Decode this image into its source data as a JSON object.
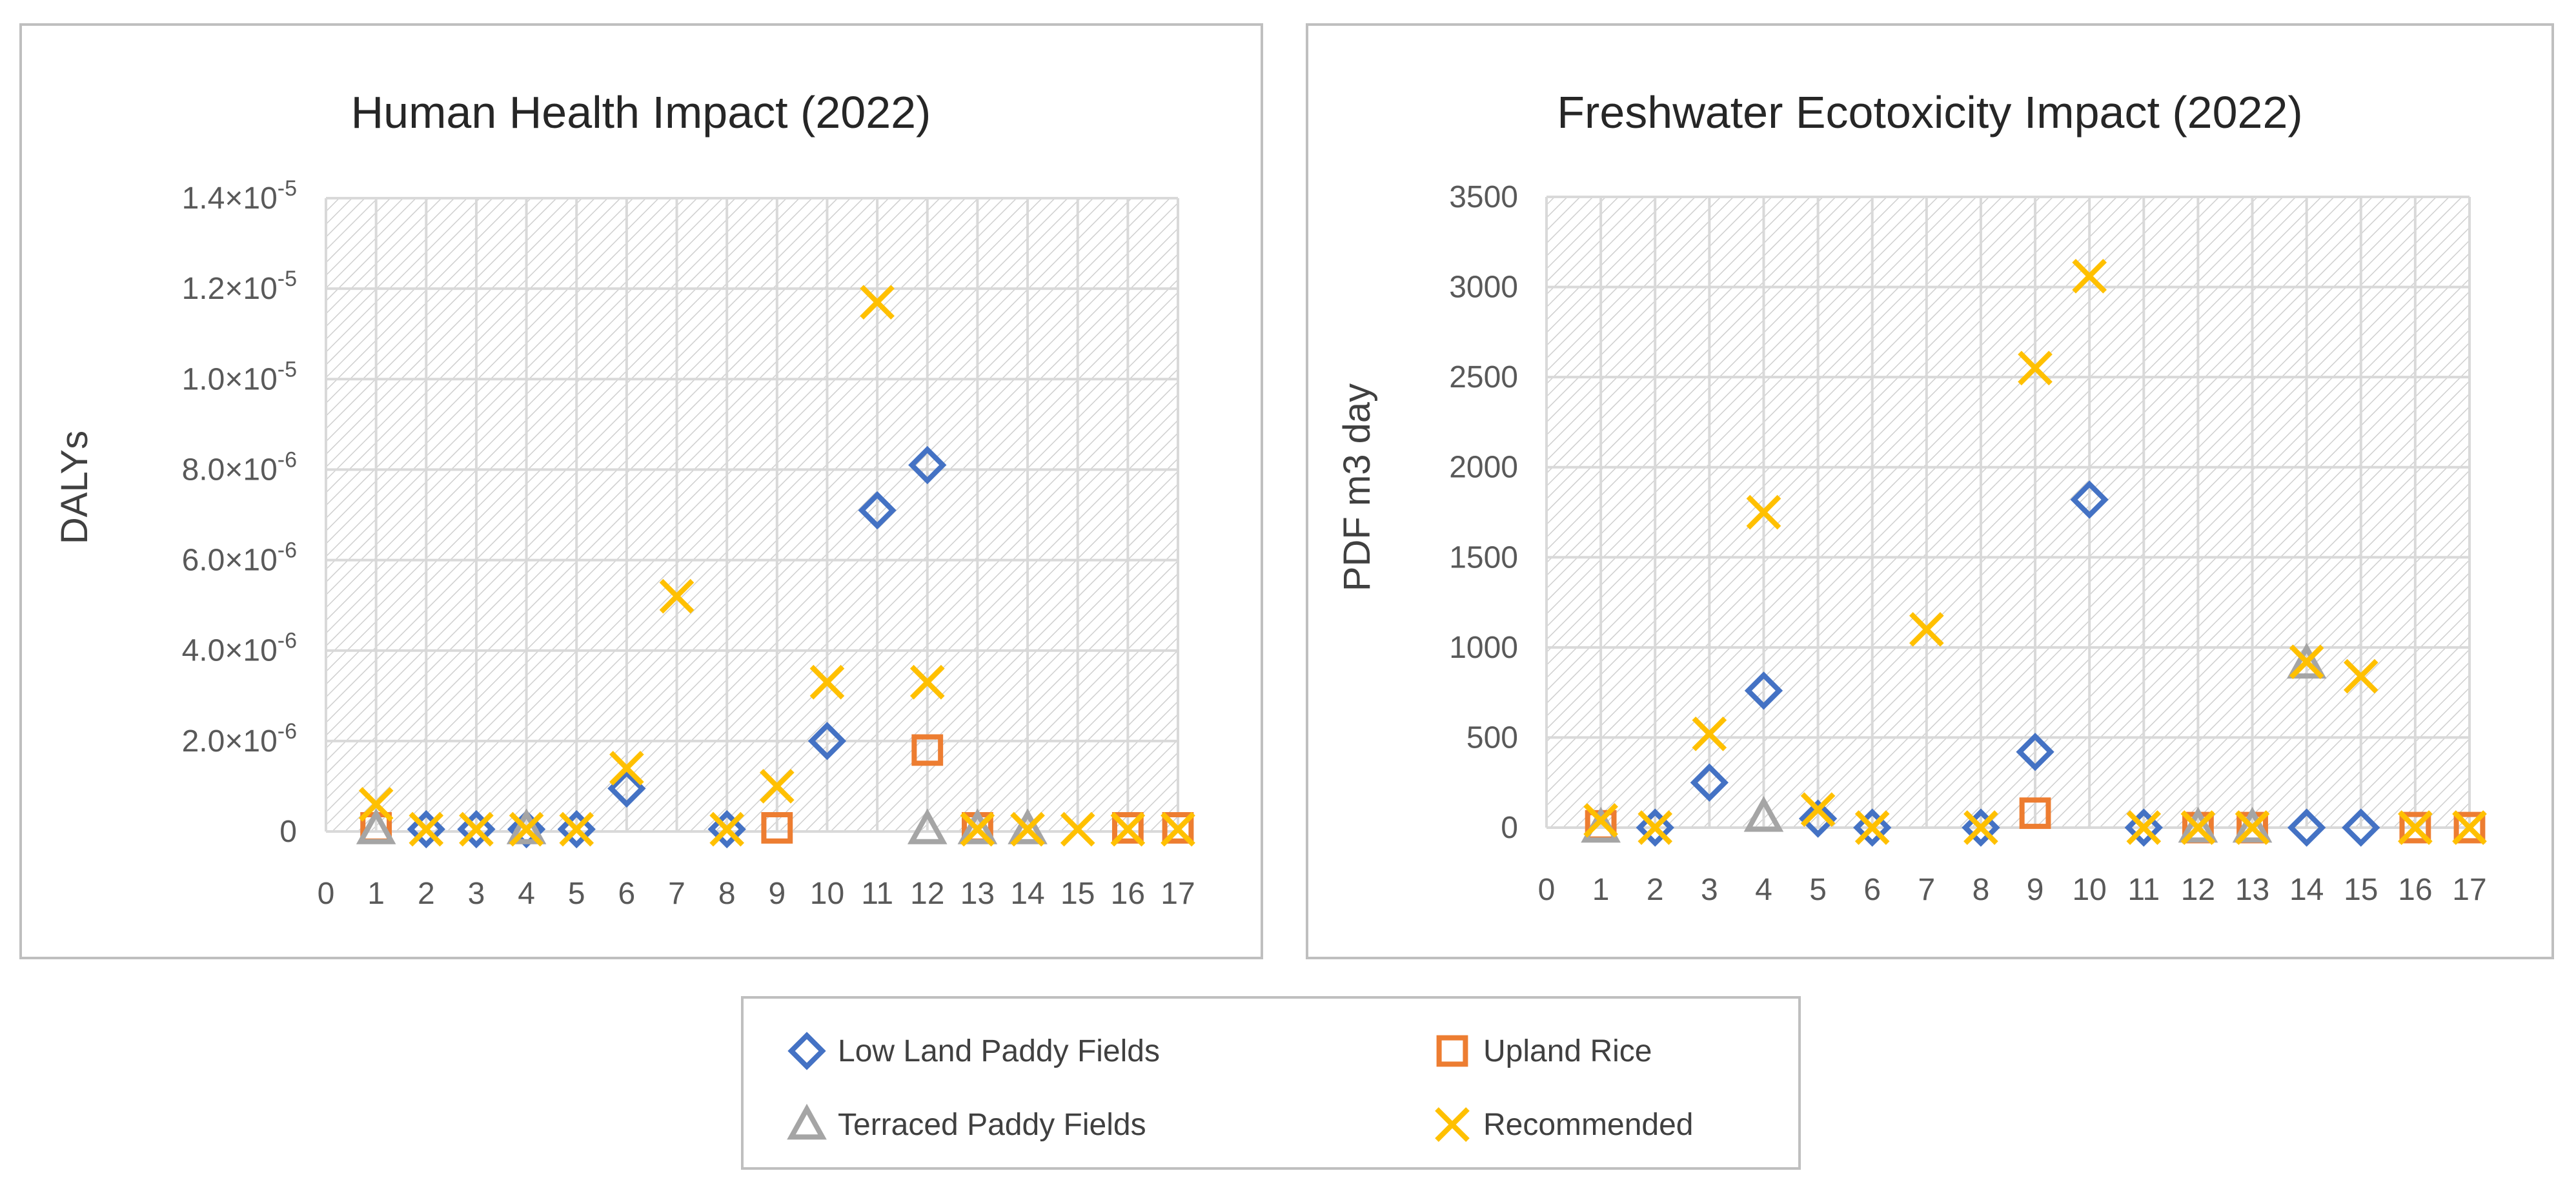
{
  "colors": {
    "low_land": "#4472C4",
    "upland": "#ED7D31",
    "terraced": "#A5A5A5",
    "recommended": "#FFC000",
    "grid": "#D9D9D9",
    "frame": "#BFBFBF"
  },
  "legend": {
    "items": [
      {
        "key": "low_land",
        "label": "Low Land Paddy Fields",
        "marker": "diamond"
      },
      {
        "key": "upland",
        "label": "Upland Rice",
        "marker": "square"
      },
      {
        "key": "terraced",
        "label": "Terraced Paddy Fields",
        "marker": "triangle"
      },
      {
        "key": "recommended",
        "label": "Recommended",
        "marker": "x"
      }
    ]
  },
  "chart_data": [
    {
      "type": "scatter",
      "title": "Human Health Impact (2022)",
      "xlabel": "",
      "ylabel": "DALYs",
      "xlim": [
        0,
        17
      ],
      "ylim": [
        0,
        1.4e-05
      ],
      "x_ticks": [
        "0",
        "1",
        "2",
        "3",
        "4",
        "5",
        "6",
        "7",
        "8",
        "9",
        "10",
        "11",
        "12",
        "13",
        "14",
        "15",
        "16",
        "17"
      ],
      "y_ticks": [
        {
          "value": 0,
          "mantissa": "0",
          "exp": ""
        },
        {
          "value": 2e-06,
          "mantissa": "2.0×10",
          "exp": "-6"
        },
        {
          "value": 4e-06,
          "mantissa": "4.0×10",
          "exp": "-6"
        },
        {
          "value": 6e-06,
          "mantissa": "6.0×10",
          "exp": "-6"
        },
        {
          "value": 8e-06,
          "mantissa": "8.0×10",
          "exp": "-6"
        },
        {
          "value": 1e-05,
          "mantissa": "1.0×10",
          "exp": "-5"
        },
        {
          "value": 1.2e-05,
          "mantissa": "1.2×10",
          "exp": "-5"
        },
        {
          "value": 1.4e-05,
          "mantissa": "1.4×10",
          "exp": "-5"
        }
      ],
      "grid": true,
      "series": [
        {
          "name": "Low Land Paddy Fields",
          "key": "low_land",
          "marker": "diamond",
          "points": [
            [
              2,
              5e-08
            ],
            [
              3,
              5e-08
            ],
            [
              4,
              5e-08
            ],
            [
              5,
              5e-08
            ],
            [
              6,
              9.5e-07
            ],
            [
              8,
              5e-08
            ],
            [
              10,
              2e-06
            ],
            [
              11,
              7.1e-06
            ],
            [
              12,
              8.1e-06
            ]
          ]
        },
        {
          "name": "Upland Rice",
          "key": "upland",
          "marker": "square",
          "points": [
            [
              1,
              8e-08
            ],
            [
              9,
              8e-08
            ],
            [
              12,
              1.8e-06
            ],
            [
              13,
              8e-08
            ],
            [
              16,
              8e-08
            ],
            [
              17,
              8e-08
            ]
          ]
        },
        {
          "name": "Terraced Paddy Fields",
          "key": "terraced",
          "marker": "triangle",
          "points": [
            [
              1,
              5e-08
            ],
            [
              4,
              5e-08
            ],
            [
              12,
              5e-08
            ],
            [
              13,
              5e-08
            ],
            [
              14,
              5e-08
            ]
          ]
        },
        {
          "name": "Recommended",
          "key": "recommended",
          "marker": "x",
          "points": [
            [
              1,
              6e-07
            ],
            [
              2,
              5e-08
            ],
            [
              3,
              5e-08
            ],
            [
              4,
              5e-08
            ],
            [
              5,
              5e-08
            ],
            [
              6,
              1.4e-06
            ],
            [
              7,
              5.2e-06
            ],
            [
              8,
              5e-08
            ],
            [
              9,
              1e-06
            ],
            [
              10,
              3.3e-06
            ],
            [
              11,
              1.17e-05
            ],
            [
              12,
              3.3e-06
            ],
            [
              13,
              5e-08
            ],
            [
              14,
              5e-08
            ],
            [
              15,
              5e-08
            ],
            [
              16,
              5e-08
            ],
            [
              17,
              5e-08
            ]
          ]
        }
      ]
    },
    {
      "type": "scatter",
      "title": "Freshwater Ecotoxicity Impact (2022)",
      "xlabel": "",
      "ylabel": "PDF m3 day",
      "xlim": [
        0,
        17
      ],
      "ylim": [
        0,
        3500
      ],
      "x_ticks": [
        "0",
        "1",
        "2",
        "3",
        "4",
        "5",
        "6",
        "7",
        "8",
        "9",
        "10",
        "11",
        "12",
        "13",
        "14",
        "15",
        "16",
        "17"
      ],
      "y_ticks": [
        {
          "value": 0,
          "mantissa": "0",
          "exp": ""
        },
        {
          "value": 500,
          "mantissa": "500",
          "exp": ""
        },
        {
          "value": 1000,
          "mantissa": "1000",
          "exp": ""
        },
        {
          "value": 1500,
          "mantissa": "1500",
          "exp": ""
        },
        {
          "value": 2000,
          "mantissa": "2000",
          "exp": ""
        },
        {
          "value": 2500,
          "mantissa": "2500",
          "exp": ""
        },
        {
          "value": 3000,
          "mantissa": "3000",
          "exp": ""
        },
        {
          "value": 3500,
          "mantissa": "3500",
          "exp": ""
        }
      ],
      "grid": true,
      "series": [
        {
          "name": "Low Land Paddy Fields",
          "key": "low_land",
          "marker": "diamond",
          "points": [
            [
              2,
              0
            ],
            [
              3,
              250
            ],
            [
              4,
              760
            ],
            [
              5,
              50
            ],
            [
              6,
              0
            ],
            [
              8,
              0
            ],
            [
              9,
              420
            ],
            [
              10,
              1820
            ],
            [
              11,
              0
            ],
            [
              14,
              0
            ],
            [
              15,
              0
            ]
          ]
        },
        {
          "name": "Upland Rice",
          "key": "upland",
          "marker": "square",
          "points": [
            [
              1,
              10
            ],
            [
              9,
              80
            ],
            [
              12,
              0
            ],
            [
              13,
              0
            ],
            [
              16,
              0
            ],
            [
              17,
              0
            ]
          ]
        },
        {
          "name": "Terraced Paddy Fields",
          "key": "terraced",
          "marker": "triangle",
          "points": [
            [
              1,
              0
            ],
            [
              4,
              60
            ],
            [
              12,
              0
            ],
            [
              13,
              0
            ],
            [
              14,
              910
            ]
          ]
        },
        {
          "name": "Recommended",
          "key": "recommended",
          "marker": "x",
          "points": [
            [
              1,
              40
            ],
            [
              2,
              0
            ],
            [
              3,
              520
            ],
            [
              4,
              1750
            ],
            [
              5,
              100
            ],
            [
              6,
              0
            ],
            [
              7,
              1100
            ],
            [
              8,
              0
            ],
            [
              9,
              2550
            ],
            [
              10,
              3060
            ],
            [
              11,
              0
            ],
            [
              12,
              0
            ],
            [
              13,
              0
            ],
            [
              14,
              920
            ],
            [
              15,
              840
            ],
            [
              16,
              0
            ],
            [
              17,
              0
            ]
          ]
        }
      ]
    }
  ]
}
